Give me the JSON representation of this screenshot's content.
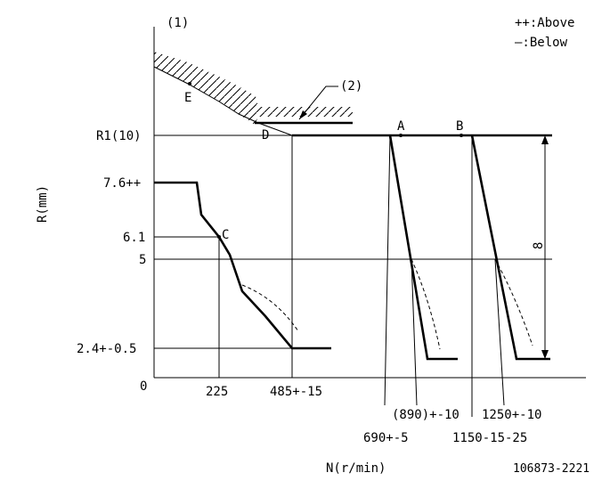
{
  "figure": {
    "callout_1": "(1)",
    "callout_2": "(2)",
    "legend_above": "++:Above",
    "legend_below": "—:Below",
    "y_axis_label": "R(mm)",
    "x_axis_label": "N(r/min)",
    "drawing_number": "106873-2221",
    "dimension_label": "8",
    "y_ticks": {
      "r1": "R1(10)",
      "v76": "7.6++",
      "v61": "6.1",
      "v5": "5",
      "v24": "2.4+-0.5",
      "zero": "0"
    },
    "x_ticks": {
      "n225": "225",
      "n485": "485+-15",
      "n690": "690+-5",
      "n890": "(890)+-10",
      "n1150": "1150-15-25",
      "n1250": "1250+-10"
    },
    "points": {
      "a": "A",
      "b": "B",
      "c": "C",
      "d": "D",
      "e": "E"
    }
  }
}
